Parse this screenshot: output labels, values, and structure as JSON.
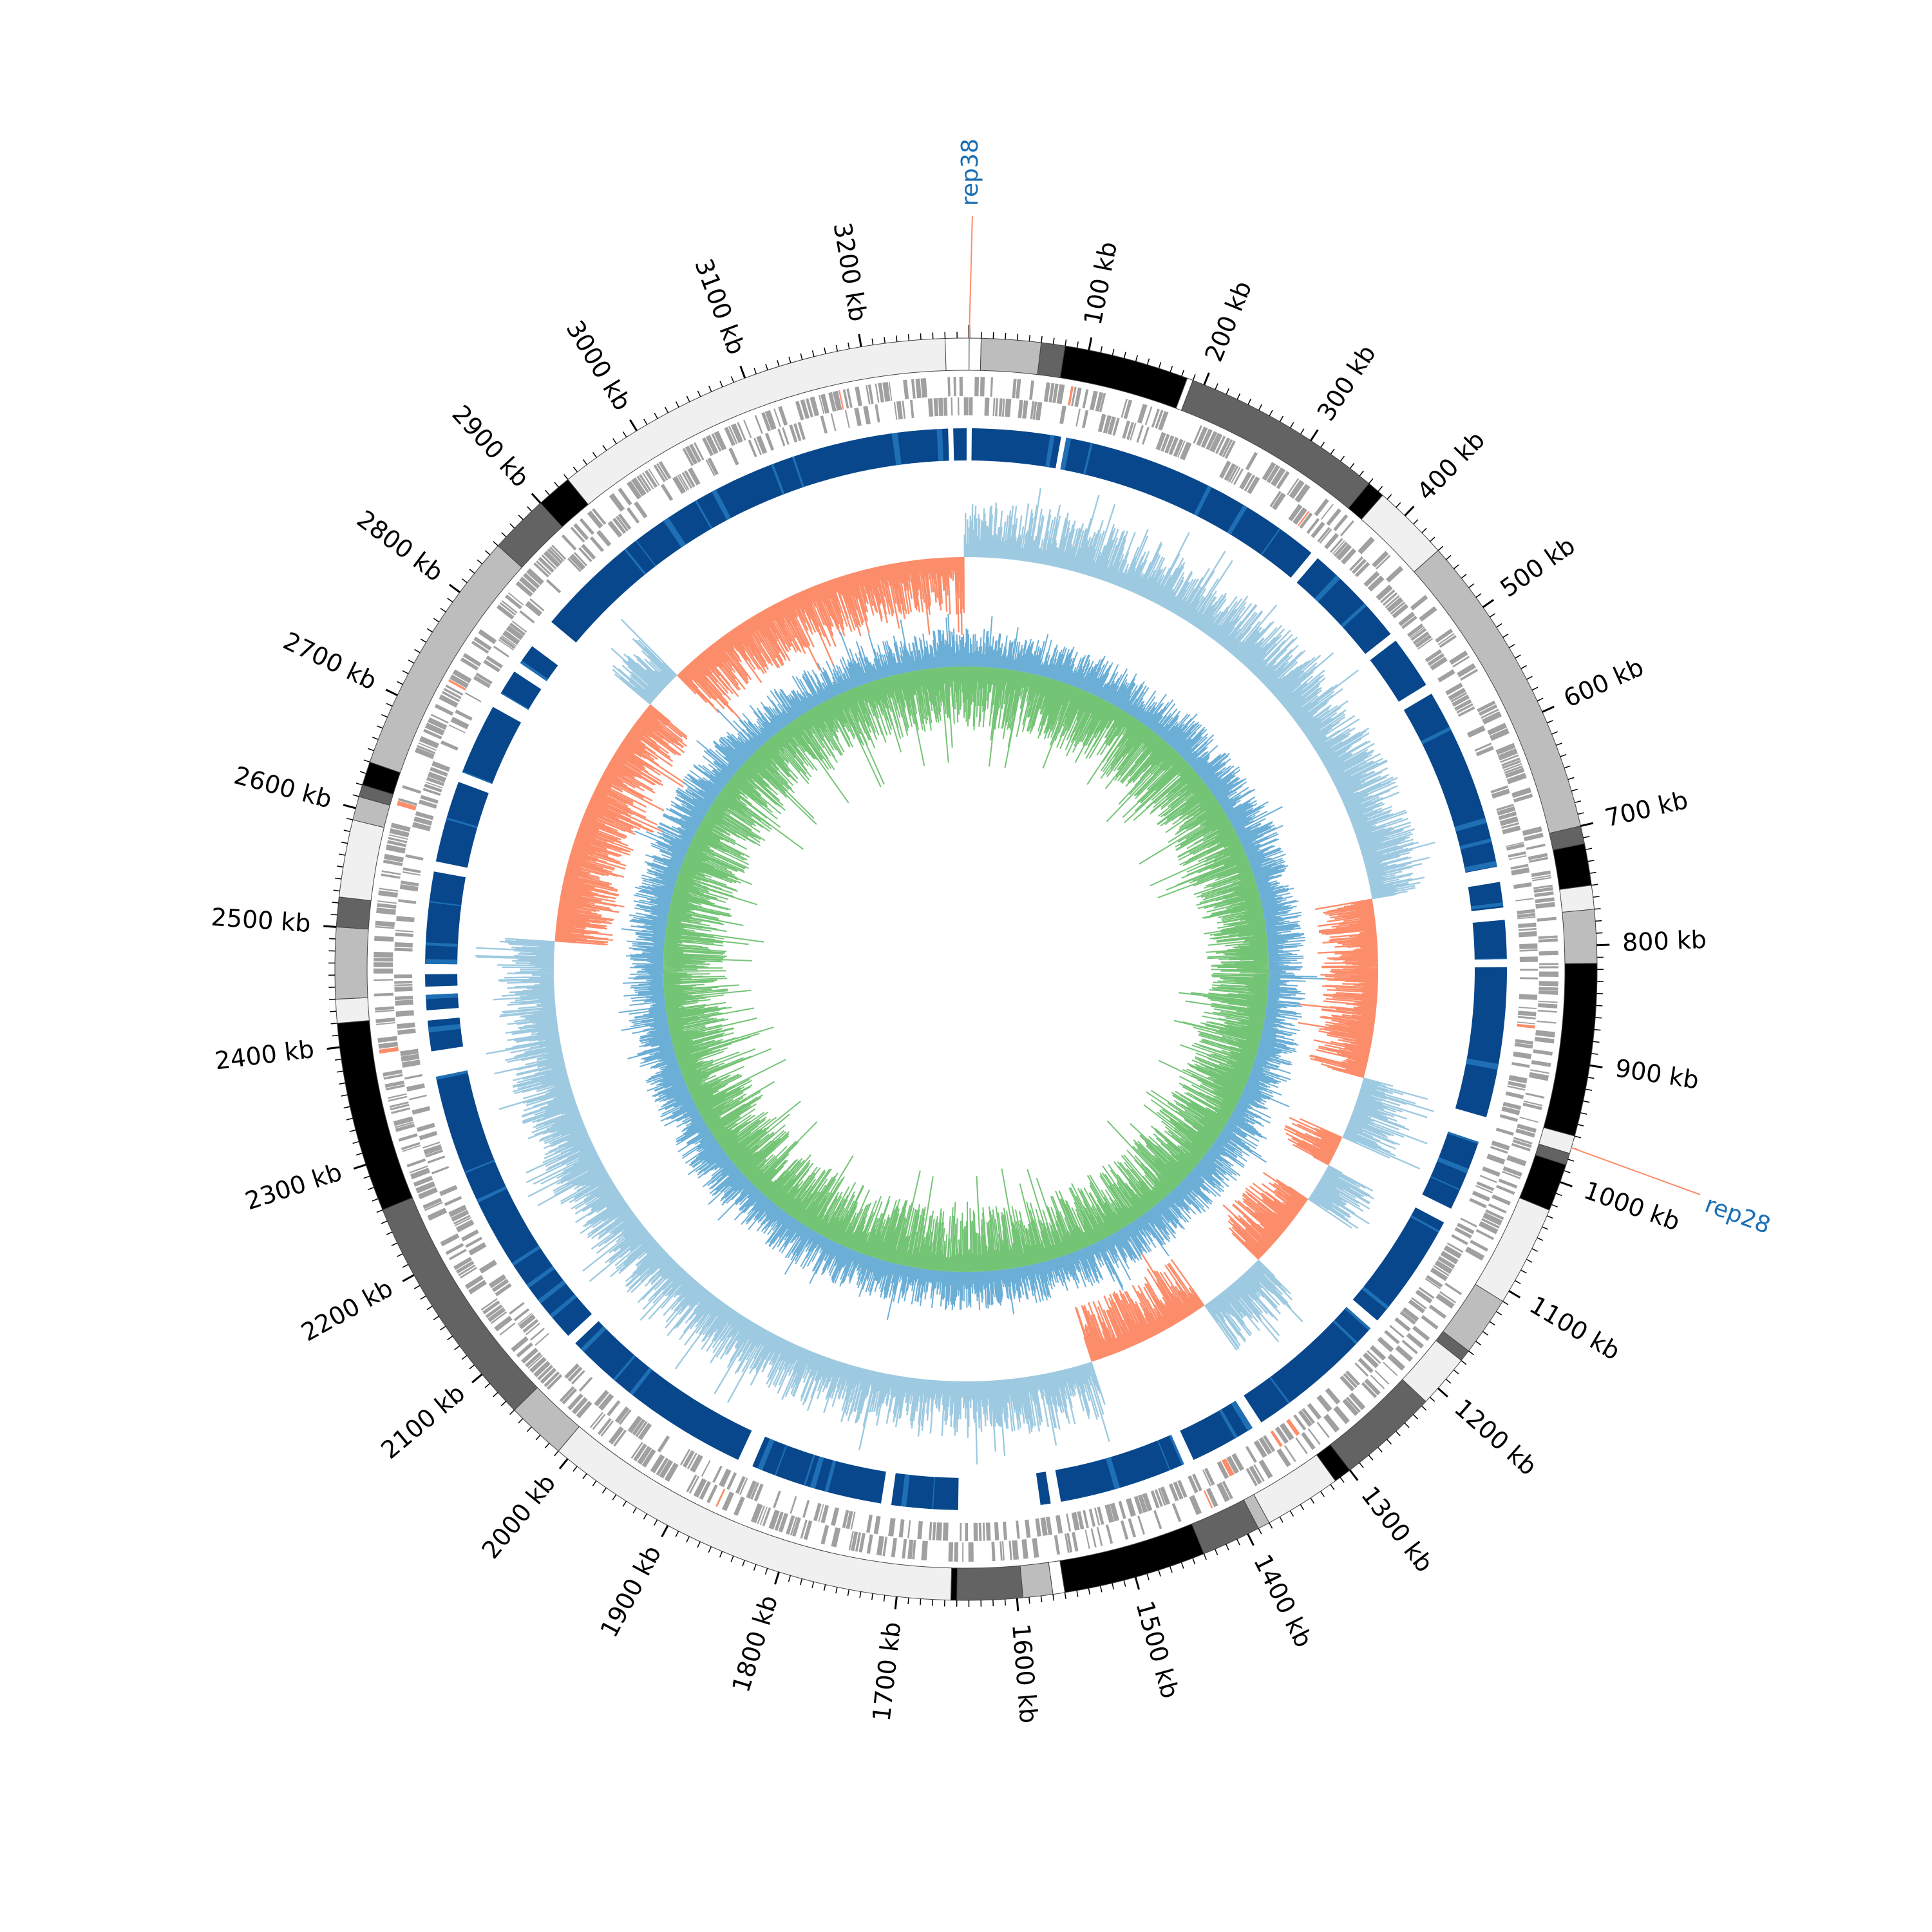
{
  "genome": {
    "length_kb": 3290,
    "tick_labels": [
      "100 kb",
      "200 kb",
      "300 kb",
      "400 kb",
      "500 kb",
      "600 kb",
      "700 kb",
      "800 kb",
      "900 kb",
      "1000 kb",
      "1100 kb",
      "1200 kb",
      "1300 kb",
      "1400 kb",
      "1500 kb",
      "1600 kb",
      "1700 kb",
      "1800 kb",
      "1900 kb",
      "2000 kb",
      "2100 kb",
      "2200 kb",
      "2300 kb",
      "2400 kb",
      "2500 kb",
      "2600 kb",
      "2700 kb",
      "2800 kb",
      "2900 kb",
      "3000 kb",
      "3100 kb",
      "3200 kb"
    ],
    "tick_kb": [
      100,
      200,
      300,
      400,
      500,
      600,
      700,
      800,
      900,
      1000,
      1100,
      1200,
      1300,
      1400,
      1500,
      1600,
      1700,
      1800,
      1900,
      2000,
      2100,
      2200,
      2300,
      2400,
      2500,
      2600,
      2700,
      2800,
      2900,
      3000,
      3100,
      3200
    ]
  },
  "contig_segments": [
    {
      "start": 0,
      "end": 10,
      "shade": "#ffffff"
    },
    {
      "start": 10,
      "end": 60,
      "shade": "#bdbdbd"
    },
    {
      "start": 60,
      "end": 80,
      "shade": "#636363"
    },
    {
      "start": 80,
      "end": 185,
      "shade": "#000000"
    },
    {
      "start": 185,
      "end": 190,
      "shade": "#ffffff"
    },
    {
      "start": 190,
      "end": 360,
      "shade": "#636363"
    },
    {
      "start": 360,
      "end": 375,
      "shade": "#000000"
    },
    {
      "start": 375,
      "end": 440,
      "shade": "#f0f0f0"
    },
    {
      "start": 440,
      "end": 700,
      "shade": "#bdbdbd"
    },
    {
      "start": 700,
      "end": 715,
      "shade": "#636363"
    },
    {
      "start": 715,
      "end": 750,
      "shade": "#000000"
    },
    {
      "start": 750,
      "end": 770,
      "shade": "#f0f0f0"
    },
    {
      "start": 770,
      "end": 815,
      "shade": "#bdbdbd"
    },
    {
      "start": 815,
      "end": 960,
      "shade": "#000000"
    },
    {
      "start": 960,
      "end": 975,
      "shade": "#f0f0f0"
    },
    {
      "start": 975,
      "end": 985,
      "shade": "#636363"
    },
    {
      "start": 985,
      "end": 1025,
      "shade": "#000000"
    },
    {
      "start": 1025,
      "end": 1110,
      "shade": "#f0f0f0"
    },
    {
      "start": 1110,
      "end": 1160,
      "shade": "#bdbdbd"
    },
    {
      "start": 1160,
      "end": 1170,
      "shade": "#636363"
    },
    {
      "start": 1170,
      "end": 1215,
      "shade": "#f0f0f0"
    },
    {
      "start": 1215,
      "end": 1300,
      "shade": "#636363"
    },
    {
      "start": 1300,
      "end": 1315,
      "shade": "#000000"
    },
    {
      "start": 1315,
      "end": 1380,
      "shade": "#f0f0f0"
    },
    {
      "start": 1380,
      "end": 1390,
      "shade": "#bdbdbd"
    },
    {
      "start": 1390,
      "end": 1440,
      "shade": "#636363"
    },
    {
      "start": 1440,
      "end": 1560,
      "shade": "#000000"
    },
    {
      "start": 1560,
      "end": 1570,
      "shade": "#ffffff"
    },
    {
      "start": 1570,
      "end": 1595,
      "shade": "#bdbdbd"
    },
    {
      "start": 1595,
      "end": 1650,
      "shade": "#636363"
    },
    {
      "start": 1650,
      "end": 1655,
      "shade": "#000000"
    },
    {
      "start": 1655,
      "end": 2010,
      "shade": "#f0f0f0"
    },
    {
      "start": 2010,
      "end": 2060,
      "shade": "#bdbdbd"
    },
    {
      "start": 2060,
      "end": 2260,
      "shade": "#636363"
    },
    {
      "start": 2260,
      "end": 2420,
      "shade": "#000000"
    },
    {
      "start": 2420,
      "end": 2440,
      "shade": "#f0f0f0"
    },
    {
      "start": 2440,
      "end": 2500,
      "shade": "#bdbdbd"
    },
    {
      "start": 2500,
      "end": 2525,
      "shade": "#636363"
    },
    {
      "start": 2525,
      "end": 2590,
      "shade": "#f0f0f0"
    },
    {
      "start": 2590,
      "end": 2610,
      "shade": "#bdbdbd"
    },
    {
      "start": 2610,
      "end": 2620,
      "shade": "#636363"
    },
    {
      "start": 2620,
      "end": 2640,
      "shade": "#000000"
    },
    {
      "start": 2640,
      "end": 2850,
      "shade": "#bdbdbd"
    },
    {
      "start": 2850,
      "end": 2900,
      "shade": "#636363"
    },
    {
      "start": 2900,
      "end": 2930,
      "shade": "#000000"
    },
    {
      "start": 2930,
      "end": 3270,
      "shade": "#f0f0f0"
    },
    {
      "start": 3270,
      "end": 3290,
      "shade": "#ffffff"
    }
  ],
  "homology_blocks": [
    {
      "start": 3,
      "end": 90
    },
    {
      "start": 95,
      "end": 360
    },
    {
      "start": 368,
      "end": 470
    },
    {
      "start": 478,
      "end": 530
    },
    {
      "start": 540,
      "end": 720
    },
    {
      "start": 735,
      "end": 760
    },
    {
      "start": 772,
      "end": 810
    },
    {
      "start": 818,
      "end": 965
    },
    {
      "start": 990,
      "end": 1060
    },
    {
      "start": 1075,
      "end": 1190
    },
    {
      "start": 1200,
      "end": 1340
    },
    {
      "start": 1350,
      "end": 1415
    },
    {
      "start": 1425,
      "end": 1550
    },
    {
      "start": 1560,
      "end": 1570
    },
    {
      "start": 1650,
      "end": 1715
    },
    {
      "start": 1725,
      "end": 1855
    },
    {
      "start": 1870,
      "end": 2065
    },
    {
      "start": 2075,
      "end": 2360
    },
    {
      "start": 2385,
      "end": 2415
    },
    {
      "start": 2425,
      "end": 2440
    },
    {
      "start": 2448,
      "end": 2460
    },
    {
      "start": 2470,
      "end": 2560
    },
    {
      "start": 2570,
      "end": 2650
    },
    {
      "start": 2660,
      "end": 2730
    },
    {
      "start": 2745,
      "end": 2770
    },
    {
      "start": 2780,
      "end": 2800
    },
    {
      "start": 2830,
      "end": 3270
    },
    {
      "start": 3275,
      "end": 3288
    }
  ],
  "gc_skew_negative_ranges": [
    {
      "start": 2500,
      "end": 2830
    },
    {
      "start": 2880,
      "end": 3285
    },
    {
      "start": 730,
      "end": 960
    },
    {
      "start": 1040,
      "end": 1080
    },
    {
      "start": 1130,
      "end": 1230
    },
    {
      "start": 1320,
      "end": 1480
    }
  ],
  "markers": [
    {
      "label": "rep38",
      "position_kb": 0
    },
    {
      "label": "rep28",
      "position_kb": 970
    }
  ],
  "colors": {
    "homology": "#08478c",
    "homology_light": "#1f6fb4",
    "gc_skew_positive": "#9ecae1",
    "gc_skew_negative": "#fc8d6b",
    "gc_content_outer": "#6baed6",
    "gc_content_inner": "#74c476",
    "gene": "#a0a0a0",
    "marker": "#fc8d6b",
    "marker_label": "#1a6fb5"
  }
}
